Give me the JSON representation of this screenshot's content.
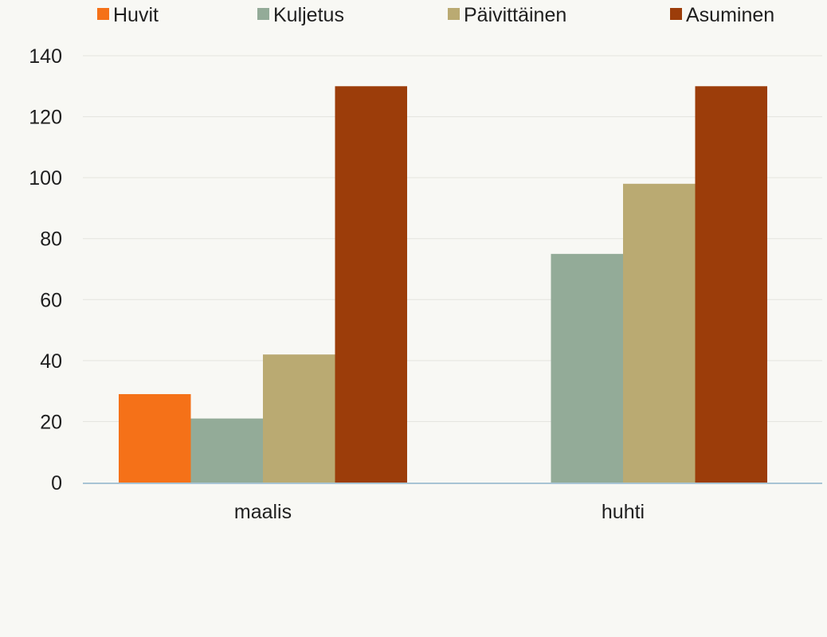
{
  "chart_data": {
    "type": "bar",
    "title": "",
    "xlabel": "",
    "ylabel": "",
    "categories": [
      "maalis",
      "huhti"
    ],
    "ylim": [
      0,
      140
    ],
    "yticks": [
      0,
      20,
      40,
      60,
      80,
      100,
      120,
      140
    ],
    "grid": true,
    "legend_position": "top",
    "series": [
      {
        "name": "Huvit",
        "color": "#f57118",
        "values": [
          29,
          0
        ]
      },
      {
        "name": "Kuljetus",
        "color": "#93ab98",
        "values": [
          21,
          75
        ]
      },
      {
        "name": "Päivittäinen",
        "color": "#baaa72",
        "values": [
          42,
          98
        ]
      },
      {
        "name": "Asuminen",
        "color": "#9c3d0a",
        "values": [
          130,
          130
        ]
      }
    ]
  },
  "colors": {
    "background": "#f8f8f4",
    "gridline": "#e4e4de",
    "baseline": "#a8c4d4",
    "text": "#1f1f1f"
  }
}
